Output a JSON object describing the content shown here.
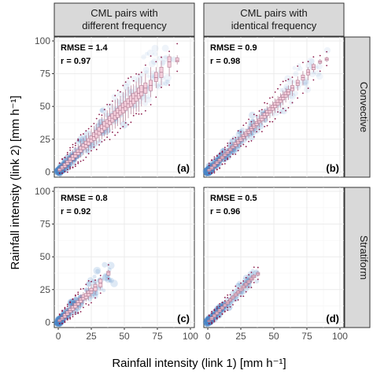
{
  "chart_data": {
    "type": "scatter",
    "xlabel": "Rainfall intensity (link 1) [mm h⁻¹]",
    "ylabel": "Rainfall intensity (link 2) [mm h⁻¹]",
    "xlim": [
      -3,
      103
    ],
    "ylim": [
      -4,
      103
    ],
    "xticks": [
      "0",
      "25",
      "50",
      "75",
      "100"
    ],
    "yticks": [
      "0",
      "25",
      "50",
      "75",
      "100"
    ],
    "columns": [
      "CML pairs with\ndifferent frequency",
      "CML pairs with\nidentical frequency"
    ],
    "rows": [
      "Convective",
      "Stratiform"
    ],
    "colors": {
      "density": "#4a86c8",
      "box_fill": "#f4cfdc",
      "box_edge": "#b07a92",
      "outlier": "#8b1a4a"
    },
    "panels": [
      {
        "letter": "(a)",
        "column": 0,
        "row": 0,
        "rmse": "RMSE = 1.4",
        "r": "r = 0.97",
        "boxes": [
          [
            1,
            0,
            0.5,
            1.2,
            2.5,
            4
          ],
          [
            3,
            0.5,
            2,
            3,
            4.5,
            7
          ],
          [
            5,
            2,
            3.5,
            5,
            6.5,
            9
          ],
          [
            7,
            3,
            5.5,
            7,
            8.5,
            12
          ],
          [
            9,
            5,
            7.5,
            9,
            11,
            15
          ],
          [
            11,
            6,
            9,
            11,
            13,
            17
          ],
          [
            13,
            8,
            11,
            13,
            15,
            19
          ],
          [
            15,
            10,
            13,
            15,
            17,
            21
          ],
          [
            17,
            11,
            15,
            17,
            19.5,
            24
          ],
          [
            19,
            13,
            17,
            19,
            21.5,
            26
          ],
          [
            21,
            15,
            18.5,
            21,
            23.5,
            28
          ],
          [
            23,
            16,
            20.5,
            23,
            25.5,
            30
          ],
          [
            25,
            18,
            22.5,
            25,
            27.5,
            33
          ],
          [
            27,
            20,
            24,
            27,
            30,
            35
          ],
          [
            29,
            21,
            26,
            29,
            32,
            37
          ],
          [
            31,
            23,
            28,
            31,
            34,
            40
          ],
          [
            33,
            25,
            30,
            33,
            36,
            42
          ],
          [
            35,
            27,
            32,
            35,
            38.5,
            45
          ],
          [
            37,
            28,
            34,
            37,
            40,
            47
          ],
          [
            39,
            30,
            36,
            39,
            42.5,
            49
          ],
          [
            41,
            32,
            38,
            41,
            44.5,
            52
          ],
          [
            43,
            33,
            40,
            43,
            46.5,
            55
          ],
          [
            45,
            35,
            41.5,
            45,
            48.5,
            56
          ],
          [
            47,
            36,
            43.5,
            47,
            50.5,
            58
          ],
          [
            49,
            38,
            45,
            49,
            52.5,
            61
          ],
          [
            51,
            39,
            47,
            50,
            54,
            63
          ],
          [
            53,
            41,
            49,
            52,
            56,
            65
          ],
          [
            55,
            44,
            50,
            54,
            58,
            66
          ],
          [
            57,
            44,
            52,
            56,
            60,
            67
          ],
          [
            59,
            46,
            54,
            58,
            61,
            69
          ],
          [
            61,
            46,
            56,
            60,
            64,
            72
          ],
          [
            63,
            50,
            58,
            61,
            66,
            73
          ],
          [
            66,
            53,
            60,
            64,
            68,
            75
          ],
          [
            70,
            57,
            62,
            66,
            70,
            80
          ],
          [
            74,
            64,
            69,
            72,
            76,
            80
          ],
          [
            78,
            66,
            72,
            76,
            80,
            85
          ],
          [
            84,
            73,
            80,
            84,
            88,
            90
          ],
          [
            90,
            82,
            84,
            85,
            87,
            89
          ]
        ]
      },
      {
        "letter": "(b)",
        "column": 1,
        "row": 0,
        "rmse": "RMSE = 0.9",
        "r": "r = 0.98",
        "boxes": [
          [
            1,
            0,
            0.5,
            1,
            2,
            3.5
          ],
          [
            3,
            0.5,
            2,
            3,
            4,
            6
          ],
          [
            5,
            2,
            4,
            5,
            6,
            8
          ],
          [
            7,
            4,
            6,
            7,
            8,
            10
          ],
          [
            9,
            6,
            8,
            9,
            10,
            12
          ],
          [
            11,
            8,
            10,
            11,
            12,
            14
          ],
          [
            13,
            10,
            12,
            13,
            14,
            16
          ],
          [
            15,
            12,
            14,
            15,
            16,
            18
          ],
          [
            17,
            14,
            16,
            17,
            18,
            20
          ],
          [
            19,
            15,
            18,
            19,
            20,
            23
          ],
          [
            21,
            17,
            19.5,
            21,
            22.5,
            25
          ],
          [
            23,
            19,
            21.5,
            23,
            24.5,
            27
          ],
          [
            25,
            21,
            23.5,
            25,
            26.5,
            29
          ],
          [
            27,
            23,
            25.5,
            27,
            28.5,
            31
          ],
          [
            29,
            24,
            27.5,
            29,
            30.5,
            33
          ],
          [
            31,
            26,
            29.5,
            31,
            32.5,
            35
          ],
          [
            33,
            28,
            31.5,
            33,
            34.5,
            37
          ],
          [
            35,
            30,
            33.5,
            35,
            36.5,
            40
          ],
          [
            37,
            32,
            35.5,
            37,
            38.5,
            42
          ],
          [
            39,
            34,
            37.5,
            39,
            40.5,
            44
          ],
          [
            41,
            36,
            39,
            41,
            43,
            46
          ],
          [
            43,
            38,
            41,
            43,
            45,
            48
          ],
          [
            45,
            39,
            43,
            45,
            47,
            50
          ],
          [
            47,
            41,
            45,
            47,
            49,
            52
          ],
          [
            49,
            43,
            47,
            49,
            51,
            54
          ],
          [
            51,
            45,
            49,
            51,
            53,
            56
          ],
          [
            53,
            47,
            51,
            53,
            55,
            58
          ],
          [
            55,
            49,
            53,
            55,
            57,
            60
          ],
          [
            57,
            51,
            55,
            57,
            59,
            62
          ],
          [
            59,
            53,
            57,
            59,
            61,
            64
          ],
          [
            61,
            55,
            59,
            61,
            63,
            66
          ],
          [
            64,
            58,
            62,
            64,
            66,
            70
          ],
          [
            68,
            62,
            66,
            68,
            70,
            73
          ],
          [
            72,
            66,
            70,
            72,
            74,
            77
          ],
          [
            76,
            70,
            74,
            76,
            78,
            80
          ],
          [
            80,
            76,
            78,
            80,
            82,
            83
          ],
          [
            85,
            82,
            83,
            84,
            85,
            86
          ],
          [
            90,
            84,
            85,
            86,
            87,
            88
          ]
        ]
      },
      {
        "letter": "(c)",
        "column": 0,
        "row": 1,
        "rmse": "RMSE = 0.8",
        "r": "r = 0.92",
        "boxes": [
          [
            1,
            0,
            0.5,
            1,
            2,
            3.5
          ],
          [
            3,
            1,
            2,
            3,
            4,
            6
          ],
          [
            5,
            2,
            3.5,
            5,
            6.5,
            9
          ],
          [
            7,
            4,
            5.5,
            7,
            8.5,
            11
          ],
          [
            9,
            5,
            7.5,
            9,
            10.5,
            13
          ],
          [
            11,
            7,
            9,
            11,
            12.5,
            15
          ],
          [
            13,
            9,
            11,
            13,
            14.5,
            17
          ],
          [
            15,
            10,
            13,
            15,
            16.5,
            19
          ],
          [
            17,
            12,
            15,
            17,
            18.5,
            21
          ],
          [
            19,
            14,
            17,
            19,
            21,
            23
          ],
          [
            21,
            16,
            18,
            20,
            22,
            25
          ],
          [
            23,
            17,
            20,
            22,
            24,
            27
          ],
          [
            25,
            19,
            22,
            24,
            26,
            29
          ],
          [
            28,
            21,
            24,
            27,
            29,
            31
          ],
          [
            32,
            25,
            27,
            30,
            33,
            34
          ],
          [
            38,
            35,
            36,
            38,
            39,
            40
          ]
        ]
      },
      {
        "letter": "(d)",
        "column": 1,
        "row": 1,
        "rmse": "RMSE = 0.5",
        "r": "r = 0.96",
        "boxes": [
          [
            1,
            0,
            0.5,
            1,
            1.5,
            3
          ],
          [
            3,
            1,
            2,
            3,
            4,
            5
          ],
          [
            5,
            3,
            4,
            5,
            6,
            7
          ],
          [
            7,
            5,
            6,
            7,
            8,
            9
          ],
          [
            9,
            7,
            8,
            9,
            10,
            11
          ],
          [
            11,
            9,
            10,
            11,
            12,
            13
          ],
          [
            13,
            11,
            12,
            13,
            14,
            15
          ],
          [
            15,
            13,
            14,
            15,
            16,
            17
          ],
          [
            17,
            15,
            16,
            17,
            18,
            19
          ],
          [
            19,
            17,
            18,
            19,
            20,
            21
          ],
          [
            21,
            19,
            20,
            21,
            22,
            23
          ],
          [
            23,
            20,
            22,
            23,
            24,
            25
          ],
          [
            25,
            22,
            24,
            25,
            26,
            28
          ],
          [
            27,
            24,
            26,
            27,
            28,
            30
          ],
          [
            29,
            26,
            28,
            29,
            30,
            32
          ],
          [
            31,
            28,
            30,
            31,
            32,
            34
          ],
          [
            33,
            30,
            32,
            33,
            34,
            36
          ],
          [
            35,
            32,
            34,
            35,
            36,
            37
          ],
          [
            38,
            35,
            36,
            37,
            38,
            39
          ]
        ]
      }
    ]
  }
}
